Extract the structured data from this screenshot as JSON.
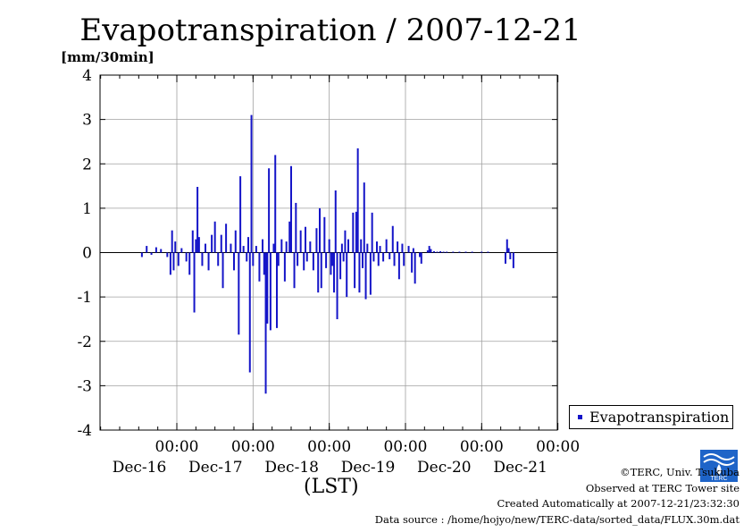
{
  "chart_data": {
    "type": "bar",
    "title": "Evapotranspiration / 2007-12-21",
    "ylabel": "[mm/30min]",
    "xlabel": "(LST)",
    "ylim": [
      -4,
      4
    ],
    "yticks": [
      "4",
      "3",
      "2",
      "1",
      "0",
      "-1",
      "-2",
      "-3",
      "-4"
    ],
    "xticks": [
      {
        "time": "00:00",
        "date": "Dec-16"
      },
      {
        "time": "00:00",
        "date": "Dec-17"
      },
      {
        "time": "00:00",
        "date": "Dec-18"
      },
      {
        "time": "00:00",
        "date": "Dec-19"
      },
      {
        "time": "00:00",
        "date": "Dec-20"
      },
      {
        "time": "00:00",
        "date": "Dec-21"
      }
    ],
    "grid": true,
    "legend_position": "bottom-right outside",
    "series": [
      {
        "name": "Evapotranspiration",
        "color": "#1414c8",
        "points": [
          [
            "2007-12-15 13:00",
            -0.1
          ],
          [
            "2007-12-15 14:30",
            0.15
          ],
          [
            "2007-12-15 16:00",
            -0.05
          ],
          [
            "2007-12-15 17:30",
            0.12
          ],
          [
            "2007-12-15 19:00",
            0.08
          ],
          [
            "2007-12-15 21:00",
            -0.1
          ],
          [
            "2007-12-15 22:00",
            -0.5
          ],
          [
            "2007-12-15 22:30",
            0.5
          ],
          [
            "2007-12-15 23:00",
            -0.4
          ],
          [
            "2007-12-15 23:30",
            0.25
          ],
          [
            "2007-12-16 00:30",
            -0.3
          ],
          [
            "2007-12-16 01:30",
            0.1
          ],
          [
            "2007-12-16 03:00",
            -0.2
          ],
          [
            "2007-12-16 04:00",
            -0.5
          ],
          [
            "2007-12-16 05:00",
            0.5
          ],
          [
            "2007-12-16 05:30",
            -1.35
          ],
          [
            "2007-12-16 06:00",
            0.3
          ],
          [
            "2007-12-16 06:30",
            1.48
          ],
          [
            "2007-12-16 07:00",
            0.35
          ],
          [
            "2007-12-16 08:00",
            -0.3
          ],
          [
            "2007-12-16 09:00",
            0.2
          ],
          [
            "2007-12-16 10:00",
            -0.4
          ],
          [
            "2007-12-16 11:00",
            0.4
          ],
          [
            "2007-12-16 12:00",
            0.7
          ],
          [
            "2007-12-16 13:00",
            -0.3
          ],
          [
            "2007-12-16 14:00",
            0.4
          ],
          [
            "2007-12-16 14:30",
            -0.8
          ],
          [
            "2007-12-16 15:30",
            0.65
          ],
          [
            "2007-12-16 17:00",
            0.2
          ],
          [
            "2007-12-16 18:00",
            -0.4
          ],
          [
            "2007-12-16 18:30",
            0.5
          ],
          [
            "2007-12-16 19:30",
            -1.85
          ],
          [
            "2007-12-16 20:00",
            1.72
          ],
          [
            "2007-12-16 21:00",
            0.15
          ],
          [
            "2007-12-16 22:00",
            -0.2
          ],
          [
            "2007-12-16 22:30",
            0.35
          ],
          [
            "2007-12-16 23:00",
            -2.7
          ],
          [
            "2007-12-16 23:30",
            3.1
          ],
          [
            "2007-12-17 00:00",
            -0.3
          ],
          [
            "2007-12-17 01:00",
            0.15
          ],
          [
            "2007-12-17 02:00",
            -0.65
          ],
          [
            "2007-12-17 03:00",
            0.3
          ],
          [
            "2007-12-17 03:30",
            -0.5
          ],
          [
            "2007-12-17 04:00",
            -3.18
          ],
          [
            "2007-12-17 04:30",
            -1.6
          ],
          [
            "2007-12-17 05:00",
            1.9
          ],
          [
            "2007-12-17 05:30",
            -1.75
          ],
          [
            "2007-12-17 06:30",
            0.2
          ],
          [
            "2007-12-17 07:00",
            2.2
          ],
          [
            "2007-12-17 07:30",
            -1.7
          ],
          [
            "2007-12-17 08:00",
            -0.3
          ],
          [
            "2007-12-17 09:00",
            0.3
          ],
          [
            "2007-12-17 10:00",
            -0.65
          ],
          [
            "2007-12-17 10:30",
            0.25
          ],
          [
            "2007-12-17 11:30",
            0.7
          ],
          [
            "2007-12-17 12:00",
            1.95
          ],
          [
            "2007-12-17 13:00",
            -0.8
          ],
          [
            "2007-12-17 13:30",
            1.12
          ],
          [
            "2007-12-17 14:00",
            -0.3
          ],
          [
            "2007-12-17 15:00",
            0.5
          ],
          [
            "2007-12-17 16:00",
            -0.4
          ],
          [
            "2007-12-17 16:30",
            0.58
          ],
          [
            "2007-12-17 17:00",
            -0.2
          ],
          [
            "2007-12-17 18:00",
            0.25
          ],
          [
            "2007-12-17 19:00",
            -0.4
          ],
          [
            "2007-12-17 20:00",
            0.55
          ],
          [
            "2007-12-17 20:30",
            -0.9
          ],
          [
            "2007-12-17 21:00",
            1.0
          ],
          [
            "2007-12-17 21:30",
            -0.8
          ],
          [
            "2007-12-17 22:30",
            0.8
          ],
          [
            "2007-12-17 23:00",
            -0.35
          ],
          [
            "2007-12-18 00:00",
            0.3
          ],
          [
            "2007-12-18 00:30",
            -0.5
          ],
          [
            "2007-12-18 01:00",
            -0.3
          ],
          [
            "2007-12-18 01:30",
            -0.9
          ],
          [
            "2007-12-18 02:00",
            1.4
          ],
          [
            "2007-12-18 02:30",
            -1.5
          ],
          [
            "2007-12-18 03:30",
            -0.6
          ],
          [
            "2007-12-18 04:00",
            0.2
          ],
          [
            "2007-12-18 04:30",
            -0.2
          ],
          [
            "2007-12-18 05:00",
            0.5
          ],
          [
            "2007-12-18 05:30",
            -1.0
          ],
          [
            "2007-12-18 06:00",
            0.3
          ],
          [
            "2007-12-18 07:30",
            0.9
          ],
          [
            "2007-12-18 08:00",
            -0.8
          ],
          [
            "2007-12-18 08:30",
            0.92
          ],
          [
            "2007-12-18 09:00",
            2.35
          ],
          [
            "2007-12-18 09:30",
            -0.9
          ],
          [
            "2007-12-18 10:00",
            0.3
          ],
          [
            "2007-12-18 10:30",
            -0.35
          ],
          [
            "2007-12-18 11:00",
            1.58
          ],
          [
            "2007-12-18 11:30",
            -1.05
          ],
          [
            "2007-12-18 12:00",
            0.2
          ],
          [
            "2007-12-18 13:00",
            -0.95
          ],
          [
            "2007-12-18 13:30",
            0.9
          ],
          [
            "2007-12-18 14:00",
            -0.2
          ],
          [
            "2007-12-18 15:00",
            0.25
          ],
          [
            "2007-12-18 15:30",
            -0.3
          ],
          [
            "2007-12-18 16:00",
            0.15
          ],
          [
            "2007-12-18 17:00",
            -0.2
          ],
          [
            "2007-12-18 18:00",
            0.3
          ],
          [
            "2007-12-18 19:00",
            -0.15
          ],
          [
            "2007-12-18 20:00",
            0.6
          ],
          [
            "2007-12-18 20:30",
            -0.3
          ],
          [
            "2007-12-18 21:30",
            0.25
          ],
          [
            "2007-12-18 22:00",
            -0.6
          ],
          [
            "2007-12-18 23:00",
            0.2
          ],
          [
            "2007-12-18 23:30",
            -0.3
          ],
          [
            "2007-12-19 01:00",
            0.15
          ],
          [
            "2007-12-19 02:00",
            -0.45
          ],
          [
            "2007-12-19 02:30",
            0.1
          ],
          [
            "2007-12-19 03:00",
            -0.7
          ],
          [
            "2007-12-19 04:30",
            -0.1
          ],
          [
            "2007-12-19 05:00",
            -0.25
          ],
          [
            "2007-12-19 07:00",
            0.05
          ],
          [
            "2007-12-19 07:30",
            0.15
          ],
          [
            "2007-12-19 08:00",
            0.08
          ],
          [
            "2007-12-19 09:00",
            0.03
          ],
          [
            "2007-12-19 10:00",
            0.02
          ],
          [
            "2007-12-19 11:00",
            0.03
          ],
          [
            "2007-12-19 12:00",
            0.02
          ],
          [
            "2007-12-19 13:00",
            0.02
          ],
          [
            "2007-12-19 15:00",
            0.02
          ],
          [
            "2007-12-19 17:00",
            0.02
          ],
          [
            "2007-12-19 19:00",
            0.02
          ],
          [
            "2007-12-19 21:00",
            0.02
          ],
          [
            "2007-12-20 00:00",
            0.02
          ],
          [
            "2007-12-20 02:00",
            0.02
          ],
          [
            "2007-12-20 07:30",
            -0.25
          ],
          [
            "2007-12-20 08:00",
            0.3
          ],
          [
            "2007-12-20 08:30",
            0.1
          ],
          [
            "2007-12-20 09:00",
            -0.15
          ],
          [
            "2007-12-20 10:00",
            -0.35
          ]
        ]
      }
    ]
  },
  "unit_label": "[mm/30min]",
  "legend_label": "Evapotranspiration",
  "xunit_label": "(LST)",
  "credits": {
    "line1": "©TERC, Univ. Tsukuba",
    "line2": "Observed at TERC Tower site",
    "line3": "Created Automatically at 2007-12-21/23:32:30",
    "line4": "Data source : /home/hojyo/new/TERC-data/sorted_data/FLUX.30m.dat"
  },
  "logo": {
    "text": "TERC",
    "color": "#1e64c8"
  }
}
